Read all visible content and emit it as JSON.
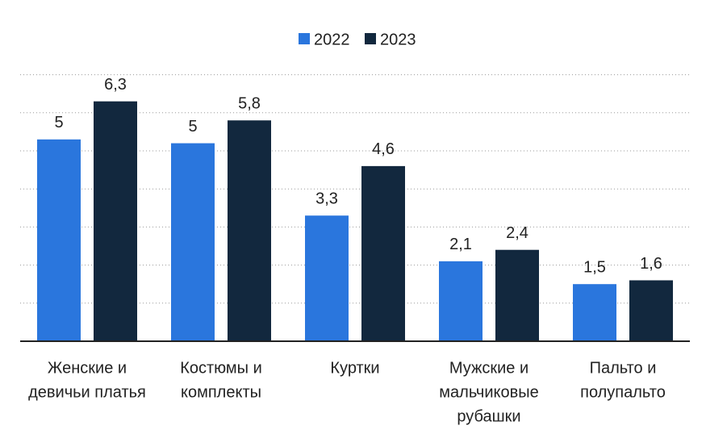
{
  "chart_data": {
    "type": "bar",
    "categories": [
      [
        "Женские и",
        "девичьи платья"
      ],
      [
        "Костюмы и",
        "комплекты"
      ],
      [
        "Куртки"
      ],
      [
        "Мужские и",
        "мальчиковые",
        "рубашки"
      ],
      [
        "Пальто и",
        "полупальто"
      ]
    ],
    "series": [
      {
        "name": "2022",
        "color": "#2a76dd",
        "values": [
          5.3,
          5.2,
          3.3,
          2.1,
          1.5
        ],
        "value_labels": [
          "5",
          "5",
          "3,3",
          "2,1",
          "1,5"
        ]
      },
      {
        "name": "2023",
        "color": "#12283e",
        "values": [
          6.3,
          5.8,
          4.6,
          2.4,
          1.6
        ],
        "value_labels": [
          "6,3",
          "5,8",
          "4,6",
          "2,4",
          "1,6"
        ]
      }
    ],
    "ylim": [
      0,
      7.1
    ],
    "yticks": [
      1,
      2,
      3,
      4,
      5,
      6,
      7
    ],
    "grid": true
  }
}
